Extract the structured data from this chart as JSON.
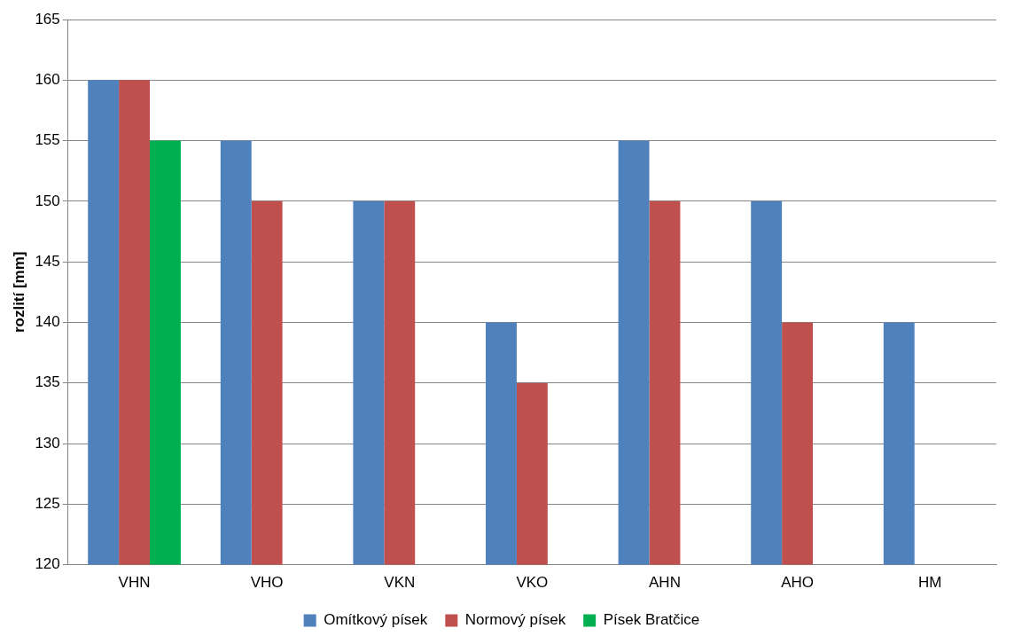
{
  "chart_data": {
    "type": "bar",
    "ylabel": "rozlití [mm]",
    "categories": [
      "VHN",
      "VHO",
      "VKN",
      "VKO",
      "AHN",
      "AHO",
      "HM"
    ],
    "series": [
      {
        "name": "Omítkový písek",
        "color": "#4f81bd",
        "values": [
          160,
          155,
          150,
          140,
          155,
          150,
          140
        ]
      },
      {
        "name": "Normový písek",
        "color": "#c0504d",
        "values": [
          160,
          150,
          150,
          135,
          150,
          140,
          null
        ]
      },
      {
        "name": "Písek Bratčice",
        "color": "#00b050",
        "values": [
          155,
          null,
          null,
          null,
          null,
          null,
          null
        ]
      }
    ],
    "ylim": [
      120,
      165
    ],
    "yticks": [
      120,
      125,
      130,
      135,
      140,
      145,
      150,
      155,
      160,
      165
    ],
    "grid": "y",
    "legend": "bottom"
  }
}
